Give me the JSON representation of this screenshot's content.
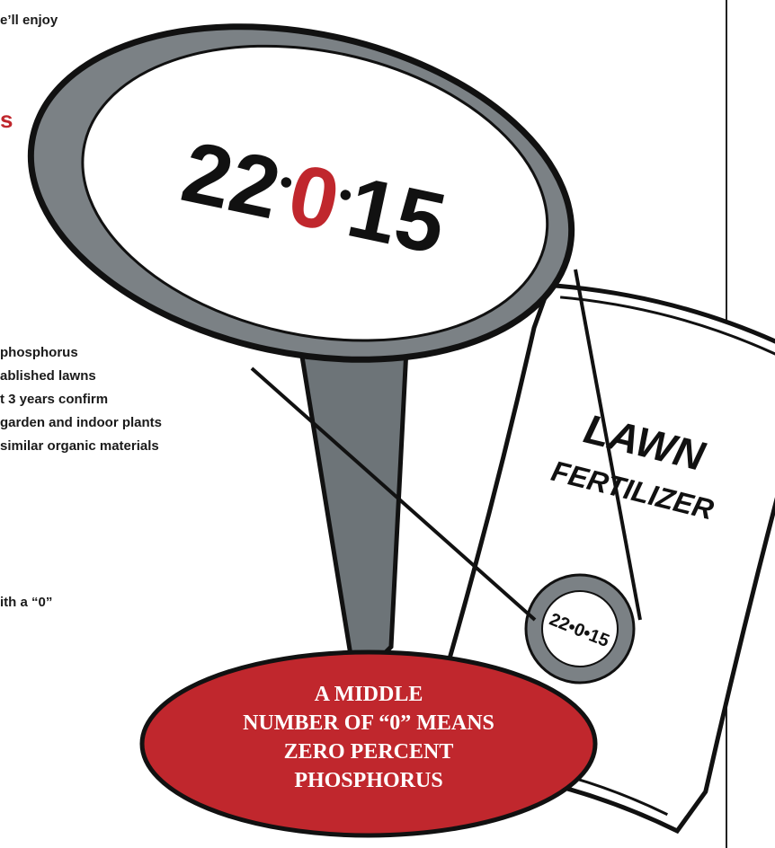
{
  "text_fragments": {
    "intro": "e’ll enjoy",
    "heading": "s",
    "list": [
      "phosphorus",
      "ablished lawns",
      "t 3 years confirm",
      "garden and indoor plants",
      "similar organic materials"
    ],
    "note": "ith a “0”"
  },
  "magnifier": {
    "parts": [
      "22",
      "•",
      "0",
      "•",
      "15"
    ]
  },
  "bag": {
    "line1": "LAWN",
    "line2": "FERTILIZER",
    "label": "22•0•15"
  },
  "callout": {
    "lines": [
      "A MIDDLE",
      "NUMBER OF “0” MEANS",
      "ZERO PERCENT",
      "PHOSPHORUS"
    ]
  }
}
